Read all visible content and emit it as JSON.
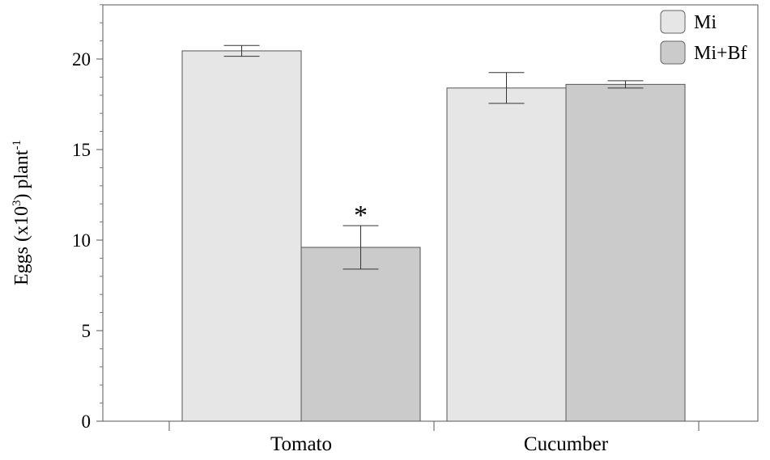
{
  "chart_data": {
    "type": "bar",
    "ylabel_parts": {
      "pre": "Eggs (x10",
      "sup1": "3",
      "mid": ") plant",
      "sup2": "-1"
    },
    "categories": [
      "Tomato",
      "Cucumber"
    ],
    "series": [
      {
        "name": "Mi",
        "values": [
          20.45,
          18.4
        ],
        "errors": [
          0.3,
          0.85
        ],
        "color": "#e6e6e6"
      },
      {
        "name": "Mi+Bf",
        "values": [
          9.6,
          18.6
        ],
        "errors": [
          1.2,
          0.2
        ],
        "color": "#cbcbcb"
      }
    ],
    "annotations": [
      {
        "text": "*",
        "category": "Tomato",
        "series": "Mi+Bf"
      }
    ],
    "ylim": [
      0,
      23
    ],
    "yticks": [
      0,
      5,
      10,
      15,
      20
    ],
    "grid": false,
    "legend_position": "top-right"
  }
}
